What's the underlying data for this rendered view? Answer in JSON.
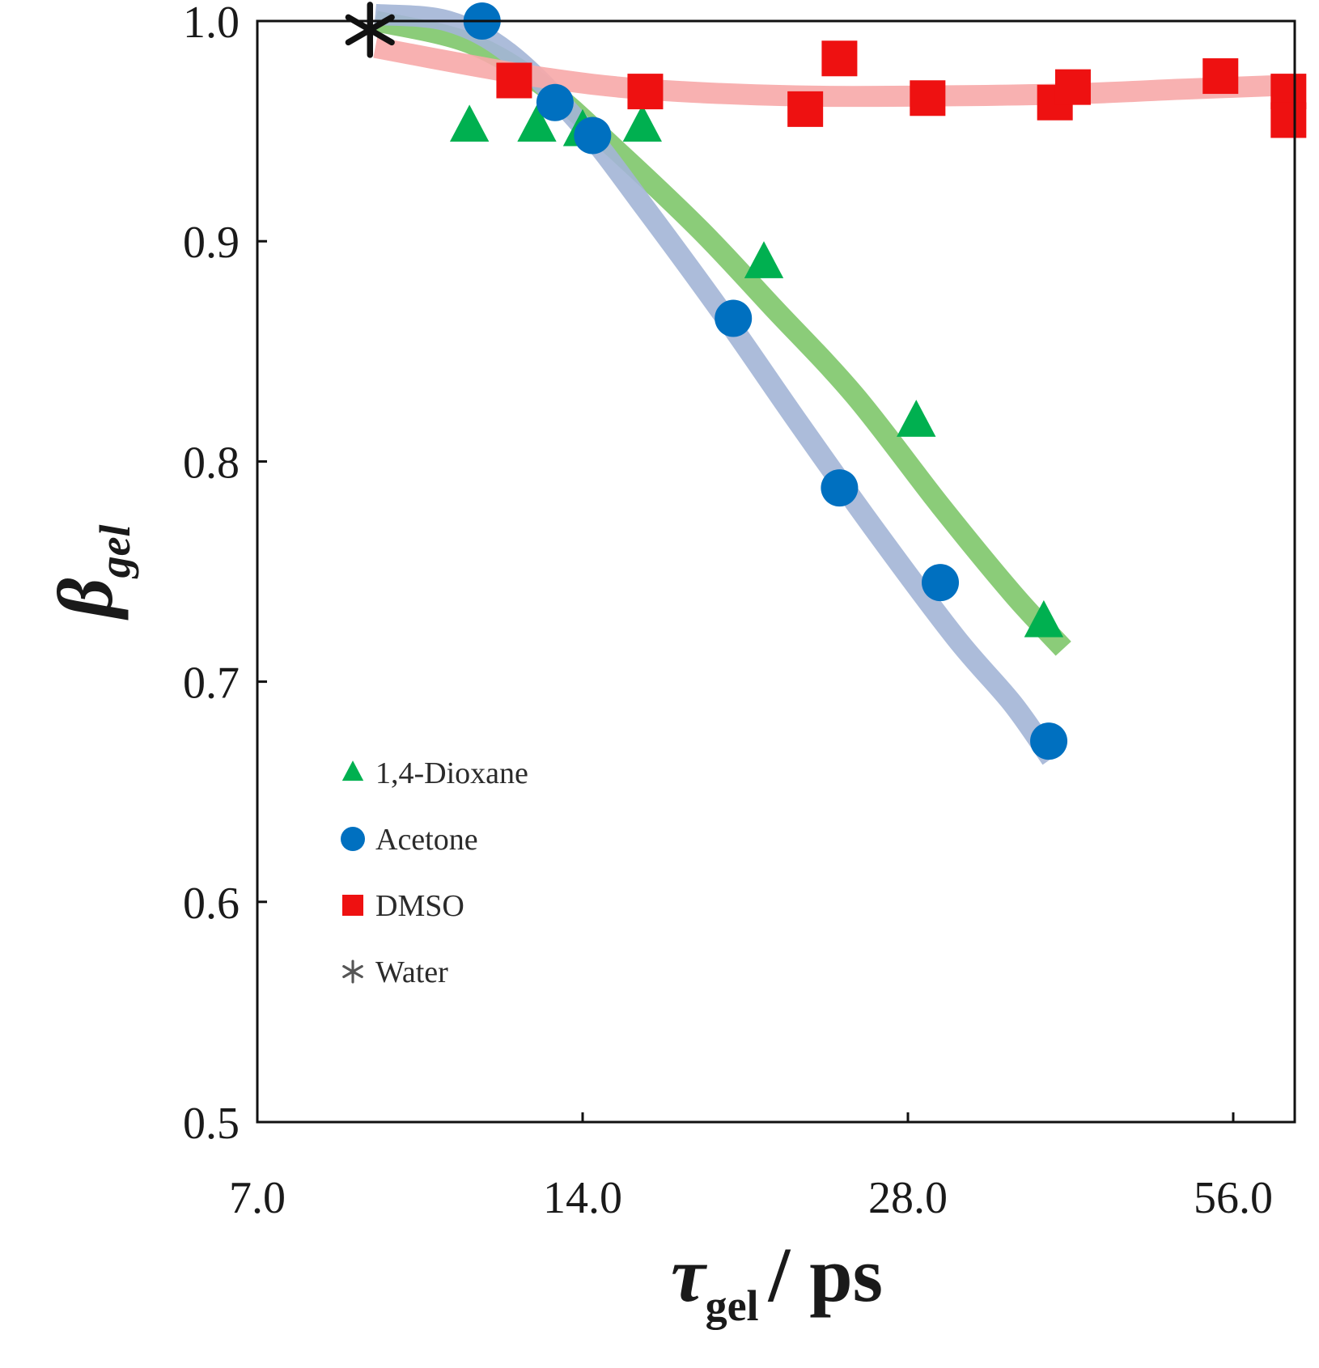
{
  "chart_data": {
    "type": "scatter",
    "x_scale": "log2",
    "xlim": [
      7.0,
      64.0
    ],
    "ylim": [
      0.5,
      1.0
    ],
    "x_ticks": [
      {
        "value": 7.0,
        "label": "7.0"
      },
      {
        "value": 14.0,
        "label": "14.0"
      },
      {
        "value": 28.0,
        "label": "28.0"
      },
      {
        "value": 56.0,
        "label": "56.0"
      }
    ],
    "y_ticks": [
      {
        "value": 0.5,
        "label": "0.5"
      },
      {
        "value": 0.6,
        "label": "0.6"
      },
      {
        "value": 0.7,
        "label": "0.7"
      },
      {
        "value": 0.8,
        "label": "0.8"
      },
      {
        "value": 0.9,
        "label": "0.9"
      },
      {
        "value": 1.0,
        "label": "1.0"
      }
    ],
    "xlabel": {
      "symbol": "τ",
      "sub": "gel",
      "rest": "/ ps"
    },
    "ylabel": {
      "symbol": "β",
      "sub": "gel"
    },
    "legend_position": "bottom-left",
    "series": [
      {
        "name": "1,4-Dioxane",
        "marker": "triangle",
        "color": "#00b050",
        "fit_color": "#7ec66a",
        "points": [
          {
            "x": 11.0,
            "y": 0.952
          },
          {
            "x": 12.7,
            "y": 0.952
          },
          {
            "x": 14.0,
            "y": 0.95
          },
          {
            "x": 15.9,
            "y": 0.952
          },
          {
            "x": 20.6,
            "y": 0.89
          },
          {
            "x": 28.5,
            "y": 0.818
          },
          {
            "x": 37.4,
            "y": 0.727
          }
        ],
        "fit": [
          {
            "x": 9.0,
            "y": 1.0
          },
          {
            "x": 11.0,
            "y": 0.99
          },
          {
            "x": 13.0,
            "y": 0.969
          },
          {
            "x": 15.0,
            "y": 0.942
          },
          {
            "x": 18.0,
            "y": 0.905
          },
          {
            "x": 21.0,
            "y": 0.87
          },
          {
            "x": 25.0,
            "y": 0.83
          },
          {
            "x": 30.0,
            "y": 0.78
          },
          {
            "x": 35.0,
            "y": 0.74
          },
          {
            "x": 39.0,
            "y": 0.715
          }
        ]
      },
      {
        "name": "Acetone",
        "marker": "circle",
        "color": "#0070c0",
        "fit_color": "#a3b5d6",
        "points": [
          {
            "x": 11.3,
            "y": 1.0
          },
          {
            "x": 13.2,
            "y": 0.963
          },
          {
            "x": 14.3,
            "y": 0.948
          },
          {
            "x": 19.3,
            "y": 0.865
          },
          {
            "x": 24.2,
            "y": 0.788
          },
          {
            "x": 30.0,
            "y": 0.745
          },
          {
            "x": 37.8,
            "y": 0.673
          }
        ],
        "fit": [
          {
            "x": 9.0,
            "y": 1.003
          },
          {
            "x": 10.5,
            "y": 1.0
          },
          {
            "x": 12.0,
            "y": 0.985
          },
          {
            "x": 14.0,
            "y": 0.952
          },
          {
            "x": 16.0,
            "y": 0.915
          },
          {
            "x": 19.0,
            "y": 0.865
          },
          {
            "x": 22.0,
            "y": 0.82
          },
          {
            "x": 26.0,
            "y": 0.77
          },
          {
            "x": 31.0,
            "y": 0.72
          },
          {
            "x": 35.0,
            "y": 0.69
          },
          {
            "x": 38.0,
            "y": 0.665
          }
        ]
      },
      {
        "name": "DMSO",
        "marker": "square",
        "color": "#ee1111",
        "fit_color": "#f7a8a8",
        "points": [
          {
            "x": 12.1,
            "y": 0.973
          },
          {
            "x": 16.0,
            "y": 0.968
          },
          {
            "x": 22.5,
            "y": 0.96
          },
          {
            "x": 24.2,
            "y": 0.983
          },
          {
            "x": 29.2,
            "y": 0.965
          },
          {
            "x": 38.3,
            "y": 0.963
          },
          {
            "x": 39.8,
            "y": 0.97
          },
          {
            "x": 54.5,
            "y": 0.975
          },
          {
            "x": 63.0,
            "y": 0.968
          },
          {
            "x": 63.0,
            "y": 0.955
          }
        ],
        "fit": [
          {
            "x": 9.0,
            "y": 0.988
          },
          {
            "x": 11.0,
            "y": 0.98
          },
          {
            "x": 13.0,
            "y": 0.974
          },
          {
            "x": 16.0,
            "y": 0.969
          },
          {
            "x": 22.0,
            "y": 0.966
          },
          {
            "x": 30.0,
            "y": 0.966
          },
          {
            "x": 40.0,
            "y": 0.967
          },
          {
            "x": 50.0,
            "y": 0.969
          },
          {
            "x": 64.0,
            "y": 0.971
          }
        ]
      },
      {
        "name": "Water",
        "marker": "asterisk",
        "color": "#111111",
        "fit_color": null,
        "points": [
          {
            "x": 8.9,
            "y": 0.996
          }
        ],
        "fit": []
      }
    ]
  }
}
